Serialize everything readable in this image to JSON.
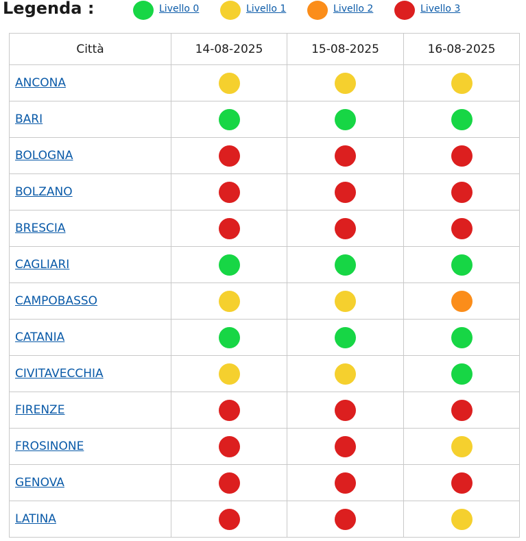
{
  "legend": {
    "title": "Legenda :",
    "items": [
      {
        "label": "Livello 0",
        "color": "#17d645"
      },
      {
        "label": "Livello 1",
        "color": "#f5d02e"
      },
      {
        "label": "Livello 2",
        "color": "#fb8d1a"
      },
      {
        "label": "Livello 3",
        "color": "#dc1f1f"
      }
    ]
  },
  "table": {
    "columns": [
      "Città",
      "14-08-2025",
      "15-08-2025",
      "16-08-2025"
    ],
    "rows": [
      {
        "city": "ANCONA",
        "levels": [
          1,
          1,
          1
        ]
      },
      {
        "city": "BARI",
        "levels": [
          0,
          0,
          0
        ]
      },
      {
        "city": "BOLOGNA",
        "levels": [
          3,
          3,
          3
        ]
      },
      {
        "city": "BOLZANO",
        "levels": [
          3,
          3,
          3
        ]
      },
      {
        "city": "BRESCIA",
        "levels": [
          3,
          3,
          3
        ]
      },
      {
        "city": "CAGLIARI",
        "levels": [
          0,
          0,
          0
        ]
      },
      {
        "city": "CAMPOBASSO",
        "levels": [
          1,
          1,
          2
        ]
      },
      {
        "city": "CATANIA",
        "levels": [
          0,
          0,
          0
        ]
      },
      {
        "city": "CIVITAVECCHIA",
        "levels": [
          1,
          1,
          0
        ]
      },
      {
        "city": "FIRENZE",
        "levels": [
          3,
          3,
          3
        ]
      },
      {
        "city": "FROSINONE",
        "levels": [
          3,
          3,
          1
        ]
      },
      {
        "city": "GENOVA",
        "levels": [
          3,
          3,
          3
        ]
      },
      {
        "city": "LATINA",
        "levels": [
          3,
          3,
          1
        ]
      }
    ]
  }
}
